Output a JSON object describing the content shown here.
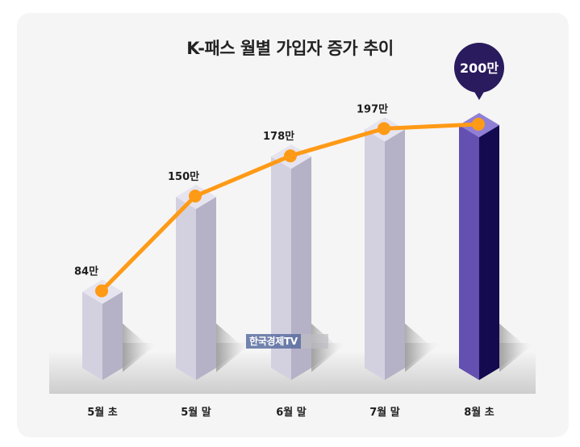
{
  "chart_data": {
    "type": "bar",
    "title": "K-패스 월별 가입자 증가 추이",
    "categories": [
      "5월 초",
      "5월 말",
      "6월 말",
      "7월 말",
      "8월 초"
    ],
    "values": [
      84,
      150,
      178,
      197,
      200
    ],
    "value_labels": [
      "84만",
      "150만",
      "178만",
      "197만",
      "200만"
    ],
    "unit": "만",
    "overlay_line": true,
    "highlight_index": 4,
    "xlabel": "",
    "ylabel": "",
    "grid": false,
    "colors": {
      "bar_left": "#d3d1e0",
      "bar_right": "#b5b1c6",
      "bar_top": "#e6e4ee",
      "highlight_left": "#6450b0",
      "highlight_right": "#140a50",
      "highlight_top": "#8f7fd6",
      "line": "#ff9a16",
      "badge": "#2a1a5e"
    }
  },
  "watermark": "한국경제TV"
}
